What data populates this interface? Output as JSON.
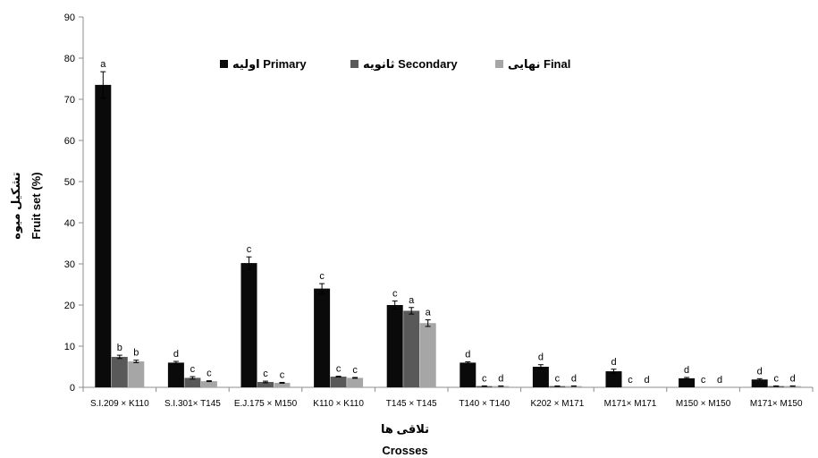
{
  "chart_data": {
    "type": "bar",
    "xlabel_fa": "تلاقی ها",
    "xlabel": "Crosses",
    "ylabel_fa": "تشکیل میوه",
    "ylabel": "Fruit set (%)",
    "ylim": [
      0,
      90
    ],
    "yticks": [
      0,
      10,
      20,
      30,
      40,
      50,
      60,
      70,
      80,
      90
    ],
    "grid": false,
    "legend_position": "top",
    "categories": [
      "S.I.209 × K110",
      "S.I.301× T145",
      "E.J.175 × M150",
      "K110 × K110",
      "T145 × T145",
      "T140 × T140",
      "K202 × M171",
      "M171× M171",
      "M150 × M150",
      "M171× M150"
    ],
    "series": [
      {
        "name": "اولیه Primary",
        "color": "#0a0a0a",
        "values": [
          73.5,
          6.0,
          30.2,
          24.0,
          20.0,
          6.0,
          5.0,
          3.9,
          2.2,
          1.9
        ],
        "errors": [
          3.2,
          0.3,
          1.5,
          1.2,
          1.0,
          0.2,
          0.5,
          0.5,
          0.2,
          0.2
        ],
        "letters": [
          "a",
          "d",
          "c",
          "c",
          "c",
          "d",
          "d",
          "d",
          "d",
          "d"
        ]
      },
      {
        "name": "ثانویه Secondary",
        "color": "#595959",
        "values": [
          7.4,
          2.3,
          1.3,
          2.6,
          18.6,
          0.3,
          0.3,
          0,
          0,
          0.3
        ],
        "errors": [
          0.4,
          0.3,
          0.2,
          0.1,
          0.8,
          0.05,
          0.05,
          0,
          0,
          0.05
        ],
        "letters": [
          "b",
          "c",
          "c",
          "c",
          "a",
          "c",
          "c",
          "c",
          "c",
          "c"
        ]
      },
      {
        "name": "نهایی Final",
        "color": "#a6a6a6",
        "values": [
          6.3,
          1.5,
          1.1,
          2.3,
          15.6,
          0.3,
          0.3,
          0,
          0,
          0.3
        ],
        "errors": [
          0.3,
          0.1,
          0.1,
          0.1,
          0.8,
          0.05,
          0.05,
          0,
          0,
          0.05
        ],
        "letters": [
          "b",
          "c",
          "c",
          "c",
          "a",
          "d",
          "d",
          "d",
          "d",
          "d"
        ]
      }
    ]
  }
}
